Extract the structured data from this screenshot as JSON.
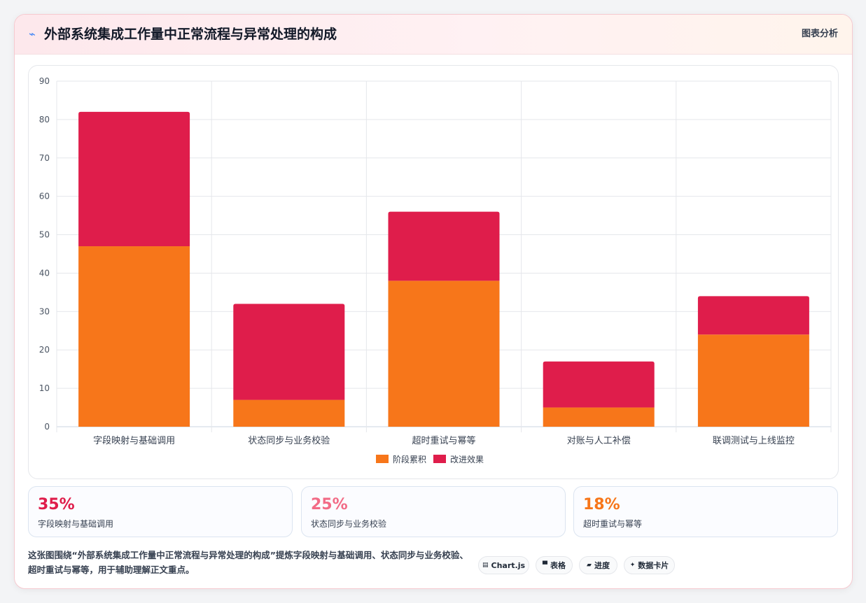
{
  "header": {
    "icon": "zigzag-icon",
    "title": "外部系统集成工作量中正常流程与异常处理的构成",
    "tag": "图表分析"
  },
  "chart_data": {
    "type": "bar",
    "stacked": true,
    "categories": [
      "字段映射与基础调用",
      "状态同步与业务校验",
      "超时重试与幂等",
      "对账与人工补偿",
      "联调测试与上线监控"
    ],
    "series": [
      {
        "name": "阶段累积",
        "values": [
          47,
          7,
          38,
          5,
          24
        ],
        "color": "#f7761a"
      },
      {
        "name": "改进效果",
        "values": [
          35,
          25,
          18,
          12,
          10
        ],
        "color": "#df1d4b"
      }
    ],
    "ylim": [
      0,
      90
    ],
    "yticks": [
      0,
      10,
      20,
      30,
      40,
      50,
      60,
      70,
      80,
      90
    ],
    "grid": true,
    "legend": "bottom"
  },
  "stats": [
    {
      "value": "35%",
      "label": "字段映射与基础调用",
      "color": "#df1d4b"
    },
    {
      "value": "25%",
      "label": "状态同步与业务校验",
      "color": "#f26b86"
    },
    {
      "value": "18%",
      "label": "超时重试与幂等",
      "color": "#f7761a"
    }
  ],
  "footer": {
    "description": "这张图围绕“外部系统集成工作量中正常流程与异常处理的构成”提炼字段映射与基础调用、状态同步与业务校验、超时重试与幂等，用于辅助理解正文重点。",
    "pills": [
      {
        "icon": "chart-icon",
        "label": "Chart.js"
      },
      {
        "icon": "table-icon",
        "label": "表格"
      },
      {
        "icon": "progress-icon",
        "label": "进度"
      },
      {
        "icon": "sparkle-icon",
        "label": "数据卡片"
      }
    ]
  }
}
